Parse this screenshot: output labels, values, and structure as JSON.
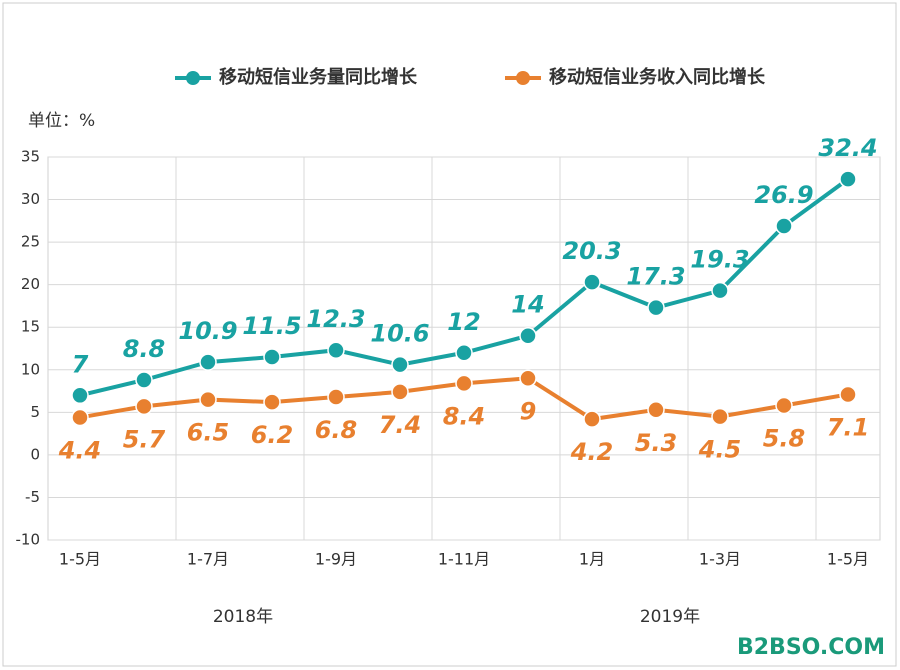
{
  "chart_data": {
    "type": "line",
    "unit_label": "单位：%",
    "categories": [
      "1-5月",
      null,
      "1-7月",
      null,
      "1-9月",
      null,
      "1-11月",
      null,
      "1月",
      null,
      "1-3月",
      null,
      "1-5月"
    ],
    "series": [
      {
        "name": "移动短信业务量同比增长",
        "color": "#19a2a2",
        "values": [
          7,
          8.8,
          10.9,
          11.5,
          12.3,
          10.6,
          12,
          14,
          20.3,
          17.3,
          19.3,
          26.9,
          32.4
        ]
      },
      {
        "name": "移动短信业务收入同比增长",
        "color": "#e8802f",
        "values": [
          4.4,
          5.7,
          6.5,
          6.2,
          6.8,
          7.4,
          8.4,
          9,
          4.2,
          5.3,
          4.5,
          5.8,
          7.1
        ]
      }
    ],
    "ylim": [
      -10,
      35
    ],
    "yticks": [
      -10,
      -5,
      0,
      5,
      10,
      15,
      20,
      25,
      30,
      35
    ],
    "grid": true,
    "annotations": [
      "2018年",
      "2019年"
    ],
    "watermark": "B2BSO.COM"
  }
}
